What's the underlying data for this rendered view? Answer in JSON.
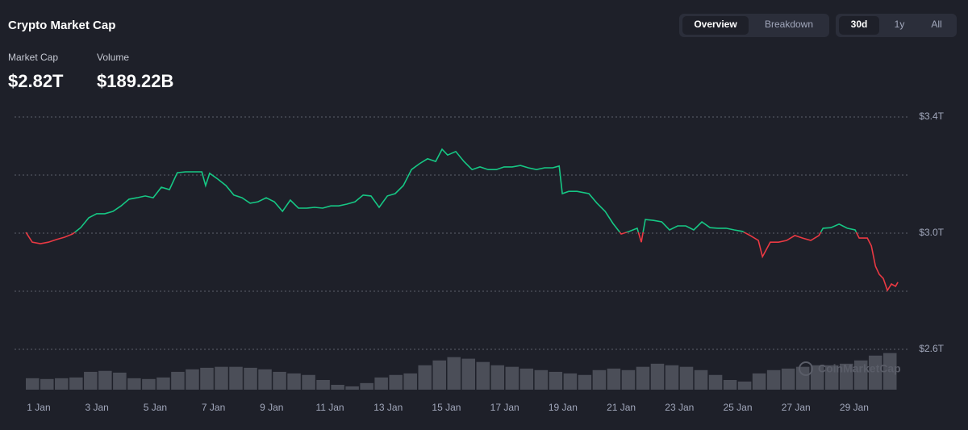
{
  "header": {
    "title": "Crypto Market Cap",
    "tabs": [
      "Overview",
      "Breakdown"
    ],
    "ranges": [
      "30d",
      "1y",
      "All"
    ]
  },
  "stats": [
    {
      "label": "Market Cap",
      "value": "$2.82T"
    },
    {
      "label": "Volume",
      "value": "$189.22B"
    }
  ],
  "watermark": "CoinMarketCap",
  "chart_data": {
    "type": "line",
    "x": [
      0.56,
      0.78,
      1.06,
      1.33,
      1.61,
      1.89,
      2.16,
      2.44,
      2.72,
      2.99,
      3.27,
      3.55,
      3.83,
      4.1,
      4.38,
      4.66,
      4.93,
      5.21,
      5.49,
      5.76,
      6.04,
      6.32,
      6.6,
      6.73,
      6.87,
      7.15,
      7.43,
      7.7,
      7.98,
      8.26,
      8.53,
      8.81,
      9.09,
      9.37,
      9.64,
      9.92,
      10.2,
      10.47,
      10.75,
      11.03,
      11.3,
      11.58,
      11.86,
      12.14,
      12.41,
      12.69,
      12.97,
      13.24,
      13.52,
      13.8,
      14.07,
      14.35,
      14.63,
      14.85,
      15.04,
      15.32,
      15.6,
      15.88,
      16.15,
      16.43,
      16.71,
      16.98,
      17.26,
      17.54,
      17.81,
      18.09,
      18.37,
      18.65,
      18.87,
      18.98,
      19.2,
      19.48,
      19.89,
      20.17,
      20.45,
      20.72,
      21.0,
      21.28,
      21.55,
      21.69,
      21.83,
      22.11,
      22.39,
      22.66,
      22.94,
      23.22,
      23.49,
      23.77,
      24.05,
      24.32,
      24.6,
      24.88,
      25.16,
      25.43,
      25.71,
      25.85,
      26.12,
      26.4,
      26.68,
      26.96,
      27.23,
      27.51,
      27.79,
      27.93,
      28.2,
      28.48,
      28.76,
      29.03,
      29.17,
      29.45,
      29.59,
      29.73,
      29.86,
      30.0,
      30.14,
      30.28,
      30.42,
      30.5
    ],
    "values": [
      3.003,
      2.969,
      2.964,
      2.969,
      2.978,
      2.986,
      2.997,
      3.019,
      3.053,
      3.067,
      3.067,
      3.075,
      3.094,
      3.117,
      3.122,
      3.128,
      3.122,
      3.158,
      3.15,
      3.208,
      3.211,
      3.211,
      3.211,
      3.164,
      3.206,
      3.186,
      3.164,
      3.131,
      3.122,
      3.103,
      3.108,
      3.122,
      3.108,
      3.075,
      3.114,
      3.086,
      3.086,
      3.089,
      3.086,
      3.094,
      3.094,
      3.1,
      3.108,
      3.131,
      3.128,
      3.089,
      3.128,
      3.136,
      3.164,
      3.219,
      3.239,
      3.256,
      3.247,
      3.289,
      3.269,
      3.281,
      3.247,
      3.219,
      3.228,
      3.219,
      3.219,
      3.228,
      3.228,
      3.233,
      3.225,
      3.219,
      3.225,
      3.225,
      3.231,
      3.136,
      3.144,
      3.144,
      3.136,
      3.103,
      3.075,
      3.033,
      2.997,
      3.006,
      3.017,
      2.969,
      3.047,
      3.044,
      3.039,
      3.011,
      3.025,
      3.025,
      3.011,
      3.039,
      3.019,
      3.017,
      3.017,
      3.011,
      3.006,
      2.992,
      2.975,
      2.919,
      2.969,
      2.969,
      2.975,
      2.992,
      2.983,
      2.975,
      2.992,
      3.017,
      3.019,
      3.031,
      3.017,
      3.011,
      2.983,
      2.983,
      2.956,
      2.886,
      2.858,
      2.844,
      2.803,
      2.825,
      2.817,
      2.831
    ],
    "colors": {
      "above": "#16c784",
      "below": "#ea3943"
    },
    "xlim": [
      0.17,
      30.83
    ],
    "xticks": [
      {
        "value": 1,
        "label": "1 Jan"
      },
      {
        "value": 3,
        "label": "3 Jan"
      },
      {
        "value": 5,
        "label": "5 Jan"
      },
      {
        "value": 7,
        "label": "7 Jan"
      },
      {
        "value": 9,
        "label": "9 Jan"
      },
      {
        "value": 11,
        "label": "11 Jan"
      },
      {
        "value": 13,
        "label": "13 Jan"
      },
      {
        "value": 15,
        "label": "15 Jan"
      },
      {
        "value": 17,
        "label": "17 Jan"
      },
      {
        "value": 19,
        "label": "19 Jan"
      },
      {
        "value": 21,
        "label": "21 Jan"
      },
      {
        "value": 23,
        "label": "23 Jan"
      },
      {
        "value": 25,
        "label": "25 Jan"
      },
      {
        "value": 27,
        "label": "27 Jan"
      },
      {
        "value": 29,
        "label": "29 Jan"
      }
    ],
    "ylim": [
      2.6,
      3.4
    ],
    "yticks": [
      {
        "value": 3.4,
        "label": "$3.4T"
      },
      {
        "value": 3.2,
        "label": null
      },
      {
        "value": 3.0,
        "label": "$3.0T"
      },
      {
        "value": 2.8,
        "label": null
      },
      {
        "value": 2.6,
        "label": "$2.6T"
      }
    ],
    "grid": true,
    "volume": {
      "color": "#4b4e58",
      "ylim": [
        0,
        200
      ],
      "values": [
        59,
        55,
        59,
        63,
        92,
        97,
        88,
        59,
        55,
        63,
        92,
        105,
        113,
        118,
        118,
        113,
        105,
        92,
        84,
        76,
        50,
        25,
        17,
        34,
        63,
        76,
        84,
        126,
        151,
        168,
        160,
        143,
        126,
        118,
        109,
        101,
        92,
        84,
        76,
        101,
        109,
        101,
        118,
        134,
        126,
        118,
        101,
        76,
        50,
        42,
        84,
        101,
        109,
        118,
        126,
        126,
        134,
        151,
        176,
        189
      ]
    }
  }
}
